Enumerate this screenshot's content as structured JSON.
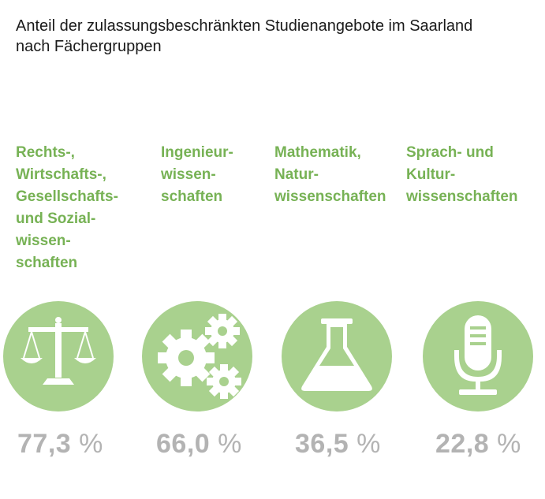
{
  "title": {
    "line1": "Anteil der zulassungsbeschränkten Studienangebote im Saarland",
    "line2": "nach Fächergruppen"
  },
  "colors": {
    "label": "#77b255",
    "circle": "#a9d18e",
    "icon": "#ffffff",
    "value": "#b3b3b3"
  },
  "chart_data": {
    "type": "table",
    "title": "Anteil der zulassungsbeschränkten Studienangebote im Saarland nach Fächergruppen",
    "unit": "%",
    "categories": [
      "Rechts-, Wirtschafts-, Gesellschafts- und Sozialwissenschaften",
      "Ingenieurwissenschaften",
      "Mathematik, Naturwissenschaften",
      "Sprach- und Kulturwissenschaften"
    ],
    "values": [
      77.3,
      66.0,
      36.5,
      22.8
    ]
  },
  "groups": [
    {
      "label_lines": [
        "Rechts-,",
        "Wirtschafts-,",
        "Gesellschafts-",
        "und Sozial-",
        "wissen-",
        "schaften"
      ],
      "value_text": "77,3",
      "unit": "%",
      "icon": "scales-icon"
    },
    {
      "label_lines": [
        "Ingenieur-",
        "wissen-",
        "schaften"
      ],
      "value_text": "66,0",
      "unit": "%",
      "icon": "gears-icon"
    },
    {
      "label_lines": [
        "Mathematik,",
        "Natur-",
        "wissenschaften"
      ],
      "value_text": "36,5",
      "unit": "%",
      "icon": "flask-icon"
    },
    {
      "label_lines": [
        "Sprach- und",
        "Kultur-",
        "wissenschaften"
      ],
      "value_text": "22,8",
      "unit": "%",
      "icon": "microphone-icon"
    }
  ]
}
